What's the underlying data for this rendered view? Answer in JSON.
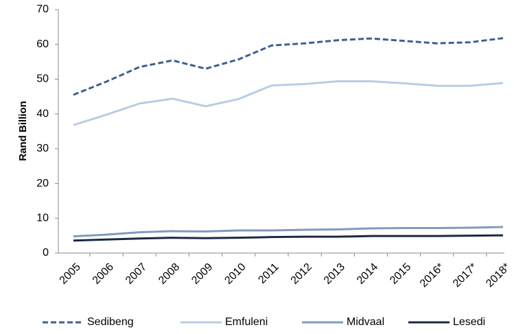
{
  "chart_data": {
    "type": "line",
    "y_label": "Rand Billion",
    "categories": [
      "2005",
      "2006",
      "2007",
      "2008",
      "2009",
      "2010",
      "2011",
      "2012",
      "2013",
      "2014",
      "2015",
      "2016*",
      "2017*",
      "2018*"
    ],
    "series": [
      {
        "name": "Sedibeng",
        "color": "#3d5f8f",
        "dashed": true,
        "values": [
          45.5,
          49.3,
          53.5,
          55.4,
          53.0,
          55.7,
          59.7,
          60.3,
          61.2,
          61.7,
          61.0,
          60.3,
          60.6,
          61.8
        ]
      },
      {
        "name": "Emfuleni",
        "color": "#b8cce4",
        "dashed": false,
        "values": [
          36.8,
          39.8,
          43.0,
          44.4,
          42.2,
          44.3,
          48.2,
          48.6,
          49.4,
          49.4,
          48.8,
          48.1,
          48.1,
          48.9
        ]
      },
      {
        "name": "Midvaal",
        "color": "#7f9bbd",
        "dashed": false,
        "values": [
          4.8,
          5.3,
          6.0,
          6.3,
          6.2,
          6.5,
          6.5,
          6.7,
          6.8,
          7.1,
          7.2,
          7.2,
          7.3,
          7.5
        ]
      },
      {
        "name": "Lesedi",
        "color": "#1a2a42",
        "dashed": false,
        "values": [
          3.6,
          3.9,
          4.2,
          4.4,
          4.3,
          4.4,
          4.6,
          4.7,
          4.7,
          4.9,
          4.9,
          4.9,
          5.0,
          5.1
        ]
      }
    ],
    "ylim": [
      0,
      70
    ],
    "yticks": [
      0,
      10,
      20,
      30,
      40,
      50,
      60,
      70
    ],
    "grid": false,
    "legend": "bottom"
  }
}
